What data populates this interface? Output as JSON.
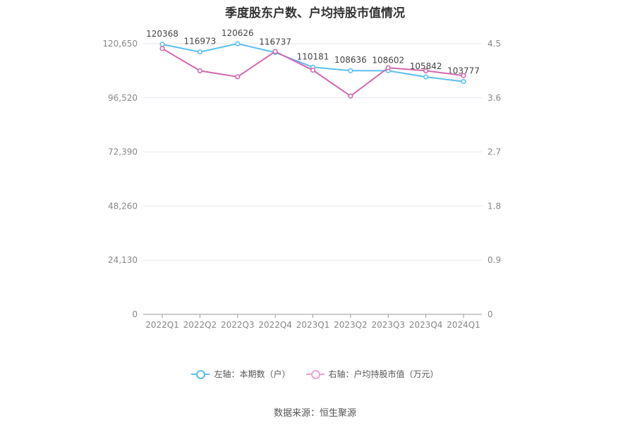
{
  "title": "季度股东户数、户均持股市值情况",
  "source": "数据来源：恒生聚源",
  "chart_data": {
    "type": "line",
    "categories": [
      "2022Q1",
      "2022Q2",
      "2022Q3",
      "2022Q4",
      "2023Q1",
      "2023Q2",
      "2023Q3",
      "2023Q4",
      "2024Q1"
    ],
    "left_axis": {
      "ticks": [
        "0",
        "24,130",
        "48,260",
        "72,390",
        "96,520",
        "120,650"
      ],
      "ylim": [
        0,
        120650
      ]
    },
    "right_axis": {
      "ticks": [
        "0",
        "0.9",
        "1.8",
        "2.7",
        "3.6",
        "4.5"
      ],
      "ylim": [
        0,
        4.5
      ]
    },
    "series": [
      {
        "name": "左轴：本期数（户）",
        "axis": "left",
        "color": "#5bbfee",
        "values": [
          120368,
          116973,
          120626,
          116737,
          110181,
          108636,
          108602,
          105842,
          103777
        ],
        "labels": [
          "120368",
          "116973",
          "120626",
          "116737",
          "110181",
          "108636",
          "108602",
          "105842",
          "103777"
        ]
      },
      {
        "name": "右轴：户均持股市值（万元）",
        "axis": "right",
        "color": "#d467b1",
        "values": [
          4.42,
          4.05,
          3.95,
          4.37,
          4.06,
          3.63,
          4.1,
          4.05,
          3.97
        ]
      }
    ],
    "grid": true,
    "legend": "bottom-center"
  }
}
